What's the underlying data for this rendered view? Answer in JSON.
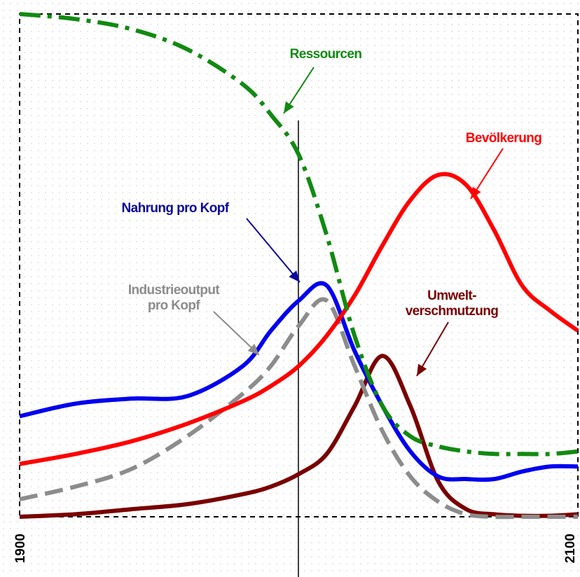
{
  "chart_data": {
    "type": "line",
    "x": [
      1900,
      1920,
      1940,
      1960,
      1980,
      1990,
      2000,
      2010,
      2020,
      2030,
      2040,
      2050,
      2060,
      2070,
      2080,
      2090,
      2100
    ],
    "xlim": [
      1900,
      2100
    ],
    "ylim": [
      0,
      100
    ],
    "x_tick_labels": [
      "1900",
      "2100"
    ],
    "grid": false,
    "current_marker_year": 1999,
    "series": [
      {
        "name": "Ressourcen",
        "color": "#118a11",
        "dash": "dashdot",
        "values": [
          100,
          99,
          97,
          93,
          86,
          80,
          72,
          56,
          36,
          22,
          16,
          14,
          13,
          12.5,
          12.5,
          12.5,
          13
        ]
      },
      {
        "name": "Bevölkerung",
        "color": "#ff0000",
        "dash": "solid",
        "values": [
          10.5,
          12.5,
          15,
          18.5,
          23,
          26,
          30,
          36,
          44,
          54,
          63,
          68,
          66,
          57,
          46,
          41,
          37
        ]
      },
      {
        "name": "Nahrung pro Kopf",
        "color": "#0000ee",
        "dash": "solid",
        "values": [
          20,
          22.5,
          23.5,
          24,
          30,
          37,
          43,
          46,
          33,
          22,
          13,
          8,
          7.5,
          7.5,
          9,
          10,
          10
        ]
      },
      {
        "name": "Industrieoutput pro Kopf",
        "color": "#8c8c8c",
        "dash": "dashed",
        "values": [
          3.5,
          6,
          9.5,
          16,
          24.5,
          30,
          38,
          43,
          30,
          17,
          8,
          3,
          0.5,
          0,
          0,
          0,
          0
        ]
      },
      {
        "name": "Umweltverschmutzung",
        "color": "#7a0000",
        "dash": "solid",
        "values": [
          0,
          0.5,
          1.5,
          2.5,
          4.5,
          6,
          8.5,
          12.5,
          22,
          32,
          22,
          7,
          1.5,
          0.5,
          0.2,
          0.2,
          0.5
        ]
      }
    ],
    "annotations": [
      {
        "text": "Ressourcen",
        "color": "#118a11"
      },
      {
        "text": "Bevölkerung",
        "color": "#ff0000"
      },
      {
        "text": "Nahrung pro Kopf",
        "color": "#0a0a9a"
      },
      {
        "text": "Industrieoutput\npro Kopf",
        "color": "#8c8c8c"
      },
      {
        "text": "Umwelt-\nverschmutzung",
        "color": "#7a0000"
      }
    ]
  }
}
